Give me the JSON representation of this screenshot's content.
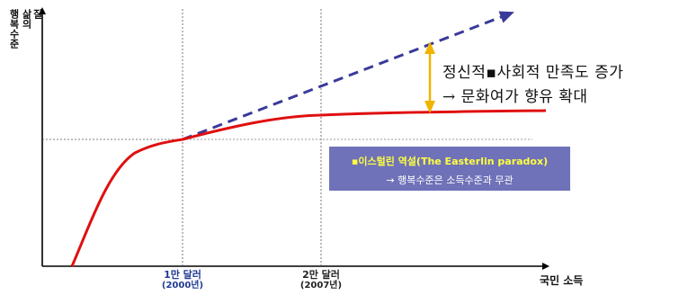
{
  "y_axis": {
    "label_col1": "행복수준",
    "label_col2": "삶의",
    "label_col3": "질"
  },
  "x_axis": {
    "label": "국민 소득",
    "ticks": [
      {
        "main": "1만 달러",
        "sub": "(2000년)"
      },
      {
        "main": "2만 달러",
        "sub": "(2007년)"
      }
    ]
  },
  "annotations": {
    "line1": "정신적▪사회적 만족도 증가",
    "line2": "→ 문화여가 향유 확대"
  },
  "paradox_box": {
    "title": "▪이스털린 역설(The Easterlin paradox)",
    "description": "→ 행복수준은 소득수준과 무관"
  },
  "colors": {
    "actual_curve": "#e01010",
    "expected_line": "#3a3a9a",
    "arrow": "#f0b400",
    "box_bg": "#6f72b8",
    "box_title": "#ffff40",
    "tick_label": "#1f3a93"
  }
}
